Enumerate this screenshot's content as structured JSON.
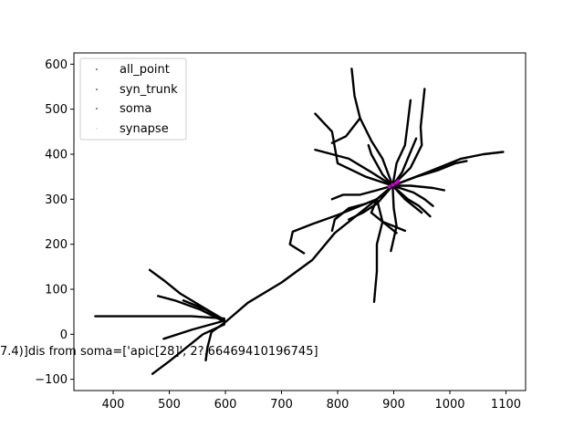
{
  "chart_data": {
    "type": "scatter",
    "title": "",
    "xlabel": "",
    "ylabel": "",
    "xlim": [
      330,
      1135
    ],
    "ylim": [
      -125,
      625
    ],
    "x_ticks": [
      400,
      500,
      600,
      700,
      800,
      900,
      1000,
      1100
    ],
    "y_ticks": [
      -100,
      0,
      100,
      200,
      300,
      400,
      500,
      600
    ],
    "x_tick_labels": [
      "400",
      "500",
      "600",
      "700",
      "800",
      "900",
      "1000",
      "1100"
    ],
    "y_tick_labels": [
      "−100",
      "0",
      "100",
      "200",
      "300",
      "400",
      "500",
      "600"
    ],
    "grid": false,
    "legend": {
      "placement": "upper-left",
      "entries": [
        {
          "label": "all_point",
          "color": "#000000"
        },
        {
          "label": "syn_trunk",
          "color": "#000000"
        },
        {
          "label": "soma",
          "color": "#000000"
        },
        {
          "label": "synapse",
          "color": "#ffb6b6"
        }
      ]
    },
    "annotation": {
      "text": "7.4)]dis from soma=['apic[28]', 2?.66469410196745]",
      "x": 330,
      "y": -40
    },
    "series": [
      {
        "name": "all_point",
        "color": "#000000",
        "paths": [
          [
            [
              598,
              25
            ],
            [
              640,
              70
            ],
            [
              700,
              115
            ],
            [
              755,
              165
            ],
            [
              795,
              225
            ],
            [
              830,
              260
            ],
            [
              870,
              300
            ],
            [
              898,
              330
            ]
          ],
          [
            [
              598,
              35
            ],
            [
              540,
              40
            ],
            [
              480,
              40
            ],
            [
              420,
              40
            ],
            [
              368,
              40
            ]
          ],
          [
            [
              598,
              32
            ],
            [
              560,
              60
            ],
            [
              520,
              90
            ],
            [
              490,
              120
            ],
            [
              465,
              143
            ]
          ],
          [
            [
              598,
              28
            ],
            [
              555,
              55
            ],
            [
              510,
              75
            ],
            [
              480,
              85
            ]
          ],
          [
            [
              598,
              22
            ],
            [
              560,
              0
            ],
            [
              530,
              -30
            ],
            [
              500,
              -60
            ],
            [
              470,
              -88
            ]
          ],
          [
            [
              598,
              25
            ],
            [
              575,
              5
            ],
            [
              568,
              -30
            ],
            [
              565,
              -58
            ]
          ],
          [
            [
              598,
              30
            ],
            [
              565,
              55
            ],
            [
              525,
              75
            ]
          ],
          [
            [
              598,
              30
            ],
            [
              540,
              10
            ],
            [
              490,
              -10
            ]
          ],
          [
            [
              898,
              330
            ],
            [
              880,
              390
            ],
            [
              860,
              430
            ],
            [
              840,
              480
            ],
            [
              830,
              530
            ],
            [
              825,
              590
            ]
          ],
          [
            [
              898,
              330
            ],
            [
              905,
              380
            ],
            [
              920,
              420
            ],
            [
              925,
              470
            ],
            [
              930,
              520
            ]
          ],
          [
            [
              898,
              330
            ],
            [
              930,
              370
            ],
            [
              950,
              420
            ],
            [
              948,
              460
            ],
            [
              955,
              545
            ]
          ],
          [
            [
              898,
              330
            ],
            [
              960,
              360
            ],
            [
              1020,
              390
            ],
            [
              1060,
              400
            ],
            [
              1095,
              405
            ]
          ],
          [
            [
              898,
              330
            ],
            [
              940,
              350
            ],
            [
              980,
              365
            ],
            [
              1010,
              380
            ],
            [
              1030,
              385
            ]
          ],
          [
            [
              898,
              330
            ],
            [
              860,
              360
            ],
            [
              820,
              390
            ],
            [
              790,
              400
            ],
            [
              760,
              410
            ]
          ],
          [
            [
              898,
              330
            ],
            [
              850,
              350
            ],
            [
              800,
              380
            ],
            [
              790,
              450
            ],
            [
              760,
              490
            ]
          ],
          [
            [
              898,
              330
            ],
            [
              870,
              300
            ],
            [
              880,
              250
            ],
            [
              870,
              200
            ],
            [
              870,
              140
            ],
            [
              865,
              72
            ]
          ],
          [
            [
              898,
              330
            ],
            [
              920,
              300
            ],
            [
              950,
              270
            ]
          ],
          [
            [
              898,
              330
            ],
            [
              930,
              330
            ],
            [
              970,
              325
            ],
            [
              990,
              320
            ]
          ],
          [
            [
              870,
              300
            ],
            [
              800,
              265
            ],
            [
              755,
              245
            ],
            [
              720,
              228
            ],
            [
              715,
              200
            ],
            [
              740,
              180
            ]
          ],
          [
            [
              870,
              300
            ],
            [
              860,
              270
            ],
            [
              885,
              245
            ],
            [
              905,
              225
            ]
          ],
          [
            [
              898,
              330
            ],
            [
              900,
              280
            ],
            [
              905,
              240
            ],
            [
              895,
              185
            ]
          ],
          [
            [
              850,
              290
            ],
            [
              820,
              280
            ],
            [
              795,
              255
            ],
            [
              790,
              230
            ]
          ],
          [
            [
              898,
              330
            ],
            [
              880,
              355
            ],
            [
              860,
              400
            ],
            [
              855,
              420
            ]
          ],
          [
            [
              898,
              330
            ],
            [
              915,
              360
            ],
            [
              930,
              405
            ],
            [
              940,
              435
            ]
          ],
          [
            [
              898,
              330
            ],
            [
              870,
              320
            ],
            [
              840,
              310
            ],
            [
              810,
              310
            ],
            [
              790,
              300
            ]
          ],
          [
            [
              898,
              330
            ],
            [
              870,
              290
            ],
            [
              845,
              270
            ],
            [
              820,
              255
            ]
          ],
          [
            [
              898,
              330
            ],
            [
              925,
              300
            ],
            [
              945,
              285
            ],
            [
              965,
              262
            ]
          ],
          [
            [
              898,
              330
            ],
            [
              935,
              315
            ],
            [
              955,
              300
            ],
            [
              970,
              285
            ]
          ],
          [
            [
              880,
              250
            ],
            [
              900,
              240
            ],
            [
              920,
              230
            ]
          ],
          [
            [
              840,
              480
            ],
            [
              815,
              440
            ],
            [
              790,
              425
            ]
          ]
        ]
      },
      {
        "name": "synapse",
        "color": "#cc00cc",
        "points": [
          [
            892,
            328
          ],
          [
            898,
            332
          ],
          [
            904,
            336
          ],
          [
            908,
            340
          ]
        ]
      }
    ]
  }
}
